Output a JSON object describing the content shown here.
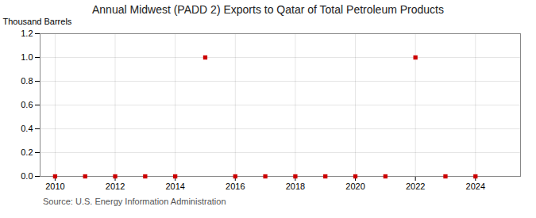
{
  "chart_data": {
    "type": "scatter",
    "title": "Annual Midwest (PADD 2) Exports to Qatar of Total Petroleum Products",
    "ylabel": "Thousand Barrels",
    "source": "Source: U.S. Energy Information Administration",
    "x": [
      2010,
      2011,
      2012,
      2013,
      2014,
      2015,
      2016,
      2017,
      2018,
      2019,
      2020,
      2021,
      2022,
      2023,
      2024
    ],
    "values": [
      0,
      0,
      0,
      0,
      0,
      1,
      0,
      0,
      0,
      0,
      0,
      0,
      1,
      0,
      0
    ],
    "color": "#cc0000",
    "marker": "square",
    "xlim": [
      2009.5,
      2025.5
    ],
    "xticks": [
      2010,
      2012,
      2014,
      2016,
      2018,
      2020,
      2022,
      2024
    ],
    "ylim": [
      0.0,
      1.2
    ],
    "yticks": [
      {
        "value": 0,
        "label": "0.0"
      },
      0.2,
      0.4,
      0.6,
      0.8,
      {
        "value": 1,
        "label": "1.0"
      },
      1.2
    ],
    "grid": true
  }
}
